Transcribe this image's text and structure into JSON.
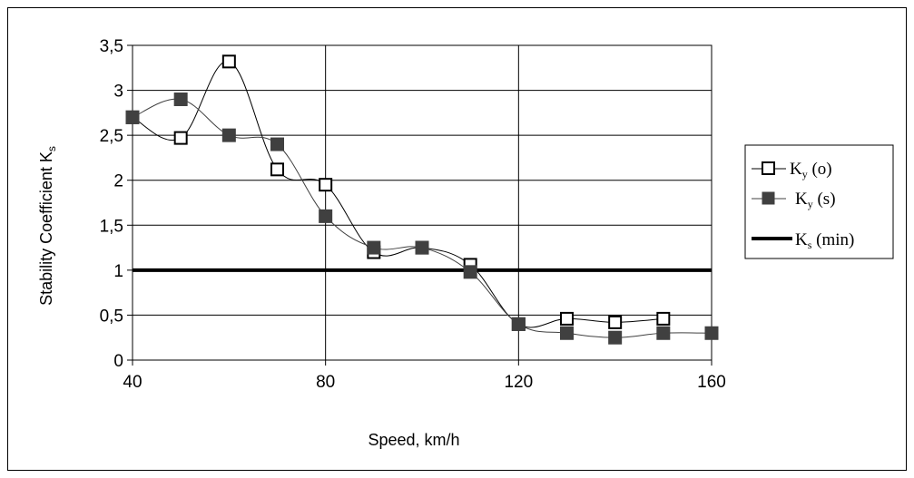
{
  "chart_data": {
    "type": "line",
    "xlabel": "Speed, km/h",
    "ylabel": "Stability Coefficient  K",
    "ylabel_sub": "s",
    "xlim": [
      40,
      160
    ],
    "ylim": [
      0,
      3.5
    ],
    "x_ticks": [
      40,
      80,
      120,
      160
    ],
    "x_tick_labels": [
      "40",
      "80",
      "120",
      "160"
    ],
    "y_ticks": [
      0,
      0.5,
      1,
      1.5,
      2,
      2.5,
      3,
      3.5
    ],
    "y_tick_labels": [
      "0",
      "0,5",
      "1",
      "1,5",
      "2",
      "2,5",
      "3",
      "3,5"
    ],
    "grid": "vertical and horizontal major",
    "legend_position": "right",
    "series": [
      {
        "name": "K",
        "name_sub": "y",
        "name_suffix": " (o)",
        "marker": "open-square",
        "color": "#000000",
        "x": [
          40,
          50,
          60,
          70,
          80,
          90,
          100,
          110,
          120,
          130,
          140,
          150
        ],
        "values": [
          2.7,
          2.47,
          3.32,
          2.12,
          1.95,
          1.2,
          1.25,
          1.06,
          0.4,
          0.46,
          0.42,
          0.46
        ]
      },
      {
        "name": "K",
        "name_sub": "y",
        "name_suffix": " (s)",
        "marker": "filled-square",
        "color": "#404040",
        "x": [
          40,
          50,
          60,
          70,
          80,
          90,
          100,
          110,
          120,
          130,
          140,
          150,
          160
        ],
        "values": [
          2.7,
          2.9,
          2.5,
          2.4,
          1.6,
          1.25,
          1.25,
          0.98,
          0.4,
          0.3,
          0.25,
          0.3,
          0.3
        ]
      },
      {
        "name": "K",
        "name_sub": "s",
        "name_suffix": " (min)",
        "marker": "none",
        "color": "#000000",
        "x": [
          40,
          160
        ],
        "values": [
          1,
          1
        ]
      }
    ]
  }
}
